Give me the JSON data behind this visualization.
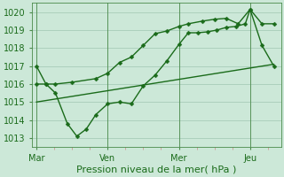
{
  "xlabel": "Pression niveau de la mer( hPa )",
  "bg_color": "#cce8d8",
  "grid_color": "#a8ccb8",
  "line_color": "#1a6b1a",
  "spine_color": "#4a8a4a",
  "ylim": [
    1012.5,
    1020.5
  ],
  "yticks": [
    1013,
    1014,
    1015,
    1016,
    1017,
    1018,
    1019,
    1020
  ],
  "xlim": [
    -0.2,
    10.3
  ],
  "day_labels": [
    "Mar",
    "Ven",
    "Mer",
    "Jeu"
  ],
  "day_positions": [
    0,
    3,
    6,
    9
  ],
  "series_jagged_x": [
    0,
    0.4,
    0.8,
    1.3,
    1.7,
    2.1,
    2.5,
    3.0,
    3.5,
    4.0,
    4.5,
    5.0,
    5.5,
    6.0,
    6.4,
    6.8,
    7.2,
    7.6,
    8.0,
    8.4,
    8.8,
    9.0,
    9.5,
    10.0
  ],
  "series_jagged_y": [
    1017.0,
    1016.0,
    1015.5,
    1013.8,
    1013.1,
    1013.5,
    1014.3,
    1014.9,
    1015.0,
    1014.9,
    1015.9,
    1016.5,
    1017.3,
    1018.2,
    1018.85,
    1018.85,
    1018.9,
    1019.0,
    1019.15,
    1019.2,
    1019.35,
    1020.15,
    1018.15,
    1017.0
  ],
  "series_smooth_x": [
    0,
    0.4,
    0.8,
    1.5,
    2.5,
    3.0,
    3.5,
    4.0,
    4.5,
    5.0,
    5.5,
    6.0,
    6.4,
    7.0,
    7.5,
    8.0,
    8.5,
    9.0,
    9.5,
    10.0
  ],
  "series_smooth_y": [
    1016.0,
    1016.0,
    1016.0,
    1016.1,
    1016.3,
    1016.6,
    1017.2,
    1017.5,
    1018.15,
    1018.8,
    1018.95,
    1019.2,
    1019.35,
    1019.5,
    1019.6,
    1019.65,
    1019.35,
    1020.15,
    1019.35,
    1019.35
  ],
  "series_trend_x": [
    0,
    10.0
  ],
  "series_trend_y": [
    1015.0,
    1017.1
  ],
  "marker_size": 2.5,
  "linewidth": 1.0,
  "xlabel_fontsize": 8,
  "tick_fontsize": 7,
  "vline_positions": [
    0,
    3,
    6,
    9
  ]
}
